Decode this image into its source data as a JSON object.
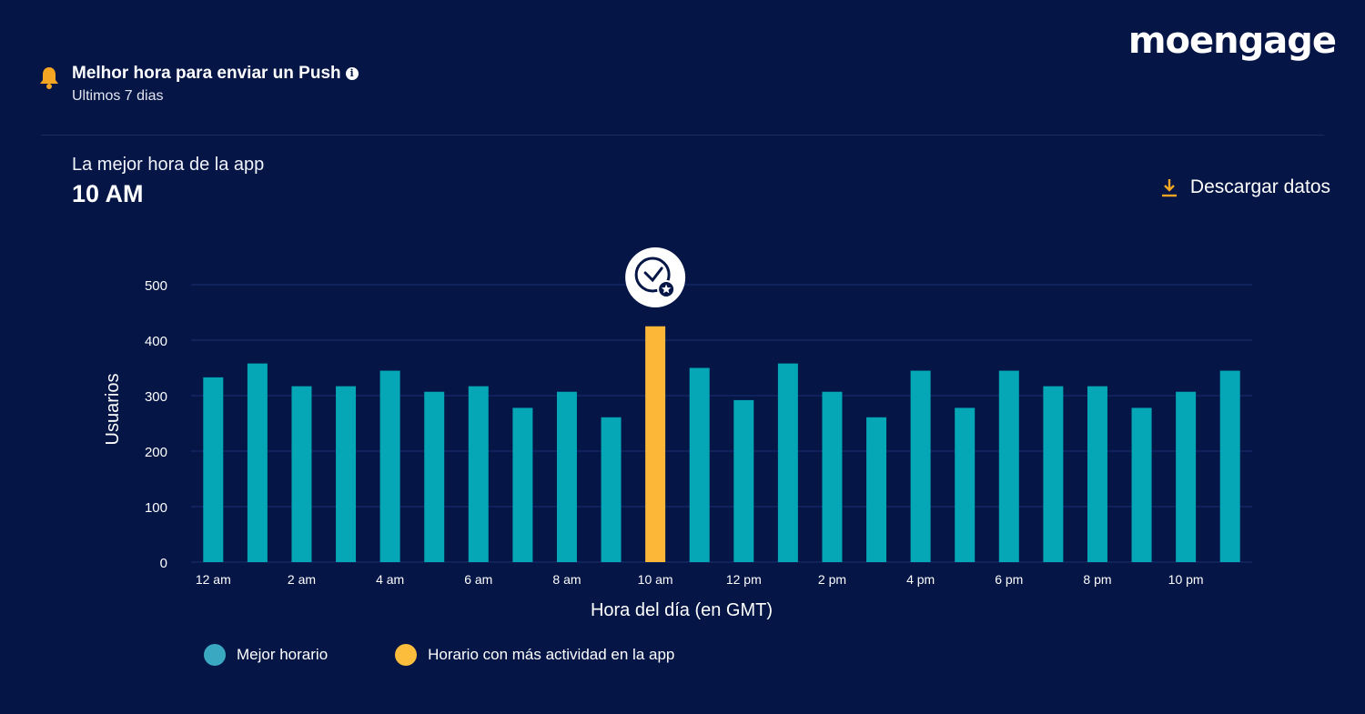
{
  "brand": {
    "logo_text": "moengage"
  },
  "header": {
    "title": "Melhor hora para enviar un Push",
    "subtitle": "Ultimos 7 dias",
    "icon": "bell-icon",
    "info_icon": "info-icon"
  },
  "summary": {
    "label": "La mejor hora de la app",
    "value": "10 AM"
  },
  "actions": {
    "download_label": "Descargar datos",
    "download_icon": "download-icon"
  },
  "colors": {
    "background": "#041546",
    "teal": "#05a6b5",
    "highlight": "#fcb738",
    "accent_orange": "#f5a623",
    "legend_teal": "#3aa8c1",
    "legend_yellow": "#fbbd3b"
  },
  "chart_data": {
    "type": "bar",
    "title": "",
    "xlabel": "Hora del día (en GMT)",
    "ylabel": "Usuarios",
    "ylim": [
      0,
      500
    ],
    "yticks": [
      0,
      100,
      200,
      300,
      400,
      500
    ],
    "grid": true,
    "x_tick_labels": [
      "12 am",
      "2 am",
      "4 am",
      "6 am",
      "8 am",
      "10 am",
      "12 pm",
      "2 pm",
      "4 pm",
      "6 pm",
      "8 pm",
      "10 pm"
    ],
    "categories": [
      "12 am",
      "1 am",
      "2 am",
      "3 am",
      "4 am",
      "5 am",
      "6 am",
      "7 am",
      "8 am",
      "9 am",
      "10 am",
      "11 am",
      "12 pm",
      "1 pm",
      "2 pm",
      "3 pm",
      "4 pm",
      "5 pm",
      "6 pm",
      "7 pm",
      "8 pm",
      "9 pm",
      "10 pm",
      "11 pm"
    ],
    "values": [
      333,
      358,
      317,
      317,
      345,
      307,
      317,
      278,
      307,
      261,
      425,
      350,
      292,
      358,
      307,
      261,
      345,
      278,
      345,
      317,
      317,
      278,
      307,
      345
    ],
    "highlight_category": "10 am",
    "highlight_marker_icon": "clock-star-icon",
    "legend": [
      {
        "label": "Mejor horario",
        "color": "#3aa8c1"
      },
      {
        "label": "Horario con más actividad en la app",
        "color": "#fbbd3b"
      }
    ]
  }
}
